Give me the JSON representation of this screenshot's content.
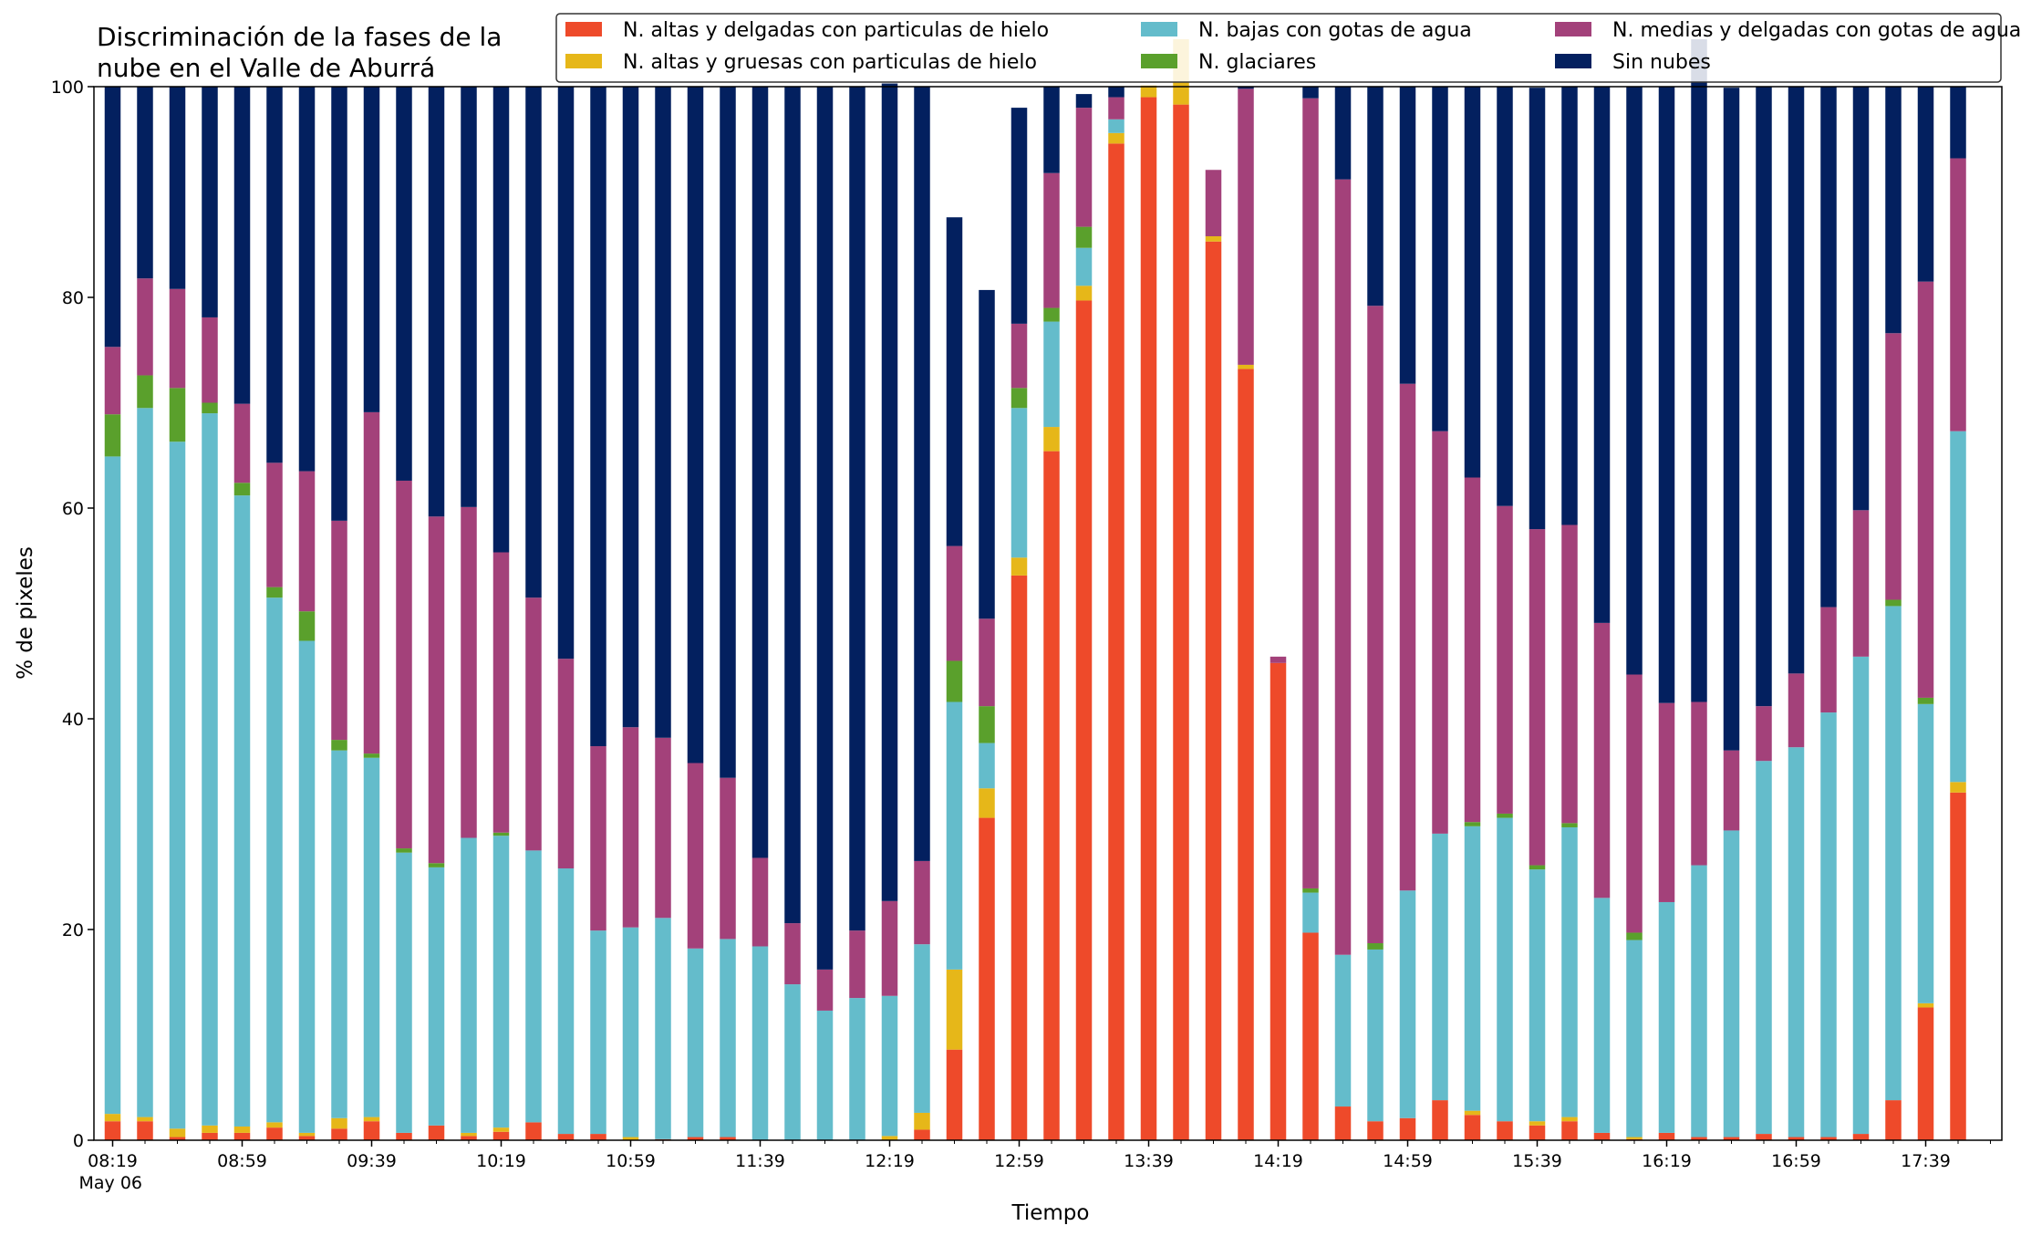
{
  "chart_data": {
    "type": "bar",
    "stacked": true,
    "title": "Discriminación de la fases de la\nnube en el Valle de Aburrá",
    "xlabel": "Tiempo",
    "ylabel": "% de pixeles",
    "ylim": [
      0,
      100
    ],
    "yticks": [
      0,
      20,
      40,
      60,
      80,
      100
    ],
    "grid": false,
    "legend_position": "top-right",
    "x_tick_labels": [
      {
        "label": "08:19",
        "sublabel": "May 06",
        "index": 0
      },
      {
        "label": "08:59",
        "index": 4
      },
      {
        "label": "09:39",
        "index": 8
      },
      {
        "label": "10:19",
        "index": 12
      },
      {
        "label": "10:59",
        "index": 16
      },
      {
        "label": "11:39",
        "index": 20
      },
      {
        "label": "12:19",
        "index": 24
      },
      {
        "label": "12:59",
        "index": 28
      },
      {
        "label": "13:39",
        "index": 32
      },
      {
        "label": "14:19",
        "index": 36
      },
      {
        "label": "14:59",
        "index": 40
      },
      {
        "label": "15:39",
        "index": 44
      },
      {
        "label": "16:19",
        "index": 48
      },
      {
        "label": "16:59",
        "index": 52
      },
      {
        "label": "17:39",
        "index": 56
      }
    ],
    "categories": [
      "08:19",
      "08:29",
      "08:39",
      "08:49",
      "08:59",
      "09:09",
      "09:19",
      "09:29",
      "09:39",
      "09:49",
      "09:59",
      "10:09",
      "10:19",
      "10:29",
      "10:39",
      "10:49",
      "10:59",
      "11:09",
      "11:19",
      "11:29",
      "11:39",
      "11:49",
      "11:59",
      "12:09",
      "12:19",
      "12:29",
      "12:39",
      "12:49",
      "12:59",
      "13:09",
      "13:19",
      "13:29",
      "13:39",
      "13:49",
      "13:59",
      "14:09",
      "14:19",
      "14:29",
      "14:39",
      "14:49",
      "14:59",
      "15:09",
      "15:19",
      "15:29",
      "15:39",
      "15:49",
      "15:59",
      "16:09",
      "16:19",
      "16:29",
      "16:39",
      "16:49",
      "16:59",
      "17:09",
      "17:19",
      "17:29",
      "17:39",
      "17:49"
    ],
    "series": [
      {
        "name": "N. altas y delgadas con particulas de hielo",
        "color": "#ee4a2a",
        "values": [
          1.8,
          1.8,
          0.3,
          0.7,
          0.7,
          1.2,
          0.4,
          1.1,
          1.8,
          0.7,
          1.4,
          0.4,
          0.8,
          1.7,
          0.6,
          0.6,
          0.0,
          0.1,
          0.3,
          0.3,
          0.0,
          0.0,
          0.0,
          0.0,
          0.0,
          1.0,
          8.6,
          30.6,
          53.6,
          65.4,
          79.7,
          94.6,
          99.0,
          98.3,
          85.3,
          73.2,
          45.3,
          19.7,
          3.2,
          1.8,
          2.1,
          3.8,
          2.4,
          1.8,
          1.4,
          1.8,
          0.7,
          0.1,
          0.7,
          0.3,
          0.3,
          0.6,
          0.3,
          0.3,
          0.6,
          3.8,
          12.6,
          33.0
        ]
      },
      {
        "name": "N. altas y gruesas con particulas de hielo",
        "color": "#e6b719",
        "values": [
          0.7,
          0.4,
          0.8,
          0.7,
          0.6,
          0.5,
          0.3,
          1.0,
          0.4,
          0.0,
          0.0,
          0.3,
          0.4,
          0.0,
          0.0,
          0.0,
          0.3,
          0.0,
          0.0,
          0.0,
          0.0,
          0.0,
          0.0,
          0.0,
          0.4,
          1.6,
          7.6,
          2.8,
          1.7,
          2.3,
          1.4,
          1.0,
          1.1,
          6.2,
          0.5,
          0.4,
          0.0,
          0.0,
          0.0,
          0.0,
          0.0,
          0.0,
          0.4,
          0.0,
          0.4,
          0.4,
          0.0,
          0.2,
          0.0,
          0.0,
          0.0,
          0.0,
          0.0,
          0.0,
          0.0,
          0.0,
          0.4,
          1.0
        ]
      },
      {
        "name": "N. bajas con gotas de agua",
        "color": "#64bccb",
        "values": [
          62.4,
          67.3,
          65.2,
          67.6,
          59.9,
          49.8,
          46.7,
          34.9,
          34.1,
          26.6,
          24.5,
          28.0,
          27.7,
          25.8,
          25.2,
          19.3,
          19.9,
          21.0,
          17.9,
          18.8,
          18.4,
          14.8,
          12.3,
          13.5,
          13.3,
          16.0,
          25.4,
          4.3,
          14.2,
          10.0,
          3.6,
          1.3,
          0.0,
          0.0,
          0.0,
          0.0,
          0.0,
          3.8,
          14.4,
          16.3,
          21.6,
          25.3,
          27.0,
          28.8,
          23.9,
          27.5,
          22.3,
          18.7,
          21.9,
          25.8,
          29.1,
          35.4,
          37.0,
          40.3,
          45.3,
          46.9,
          28.4,
          33.3
        ]
      },
      {
        "name": "N. glaciares",
        "color": "#5aa02c",
        "values": [
          4.0,
          3.1,
          5.1,
          1.0,
          1.2,
          1.0,
          2.8,
          1.0,
          0.4,
          0.4,
          0.4,
          0.0,
          0.3,
          0.0,
          0.0,
          0.0,
          0.0,
          0.0,
          0.0,
          0.0,
          0.0,
          0.0,
          0.0,
          0.0,
          0.0,
          0.0,
          3.9,
          3.5,
          1.9,
          1.3,
          2.0,
          0.0,
          0.0,
          0.0,
          0.0,
          0.0,
          0.0,
          0.4,
          0.0,
          0.6,
          0.0,
          0.0,
          0.4,
          0.4,
          0.4,
          0.4,
          0.0,
          0.7,
          0.0,
          0.0,
          0.0,
          0.0,
          0.0,
          0.0,
          0.0,
          0.6,
          0.6,
          0.0
        ]
      },
      {
        "name": "N. medias y delgadas con gotas de agua",
        "color": "#a3417a",
        "values": [
          6.4,
          9.2,
          9.4,
          8.1,
          7.5,
          11.8,
          13.3,
          20.8,
          32.4,
          34.9,
          32.9,
          31.4,
          26.6,
          24.0,
          19.9,
          17.5,
          19.0,
          17.1,
          17.6,
          15.3,
          8.4,
          5.8,
          3.9,
          6.4,
          9.0,
          7.9,
          10.9,
          8.3,
          6.1,
          12.8,
          11.3,
          2.1,
          0.0,
          0.0,
          6.3,
          26.2,
          0.6,
          75.0,
          73.6,
          60.5,
          48.1,
          38.2,
          32.7,
          29.2,
          31.9,
          28.3,
          26.1,
          24.5,
          18.9,
          15.5,
          7.6,
          5.2,
          7.0,
          10.0,
          13.9,
          25.3,
          39.5,
          25.9
        ]
      },
      {
        "name": "Sin nubes",
        "color": "#03205f",
        "values": [
          24.7,
          18.2,
          19.2,
          21.9,
          30.1,
          35.7,
          36.5,
          41.2,
          30.9,
          37.4,
          40.8,
          39.9,
          44.2,
          48.5,
          54.3,
          62.6,
          60.8,
          61.8,
          64.2,
          65.6,
          73.2,
          79.4,
          83.8,
          80.1,
          77.6,
          73.5,
          31.2,
          31.2,
          20.5,
          8.2,
          1.3,
          1.0,
          0.0,
          0.0,
          0.0,
          0.2,
          0.0,
          1.1,
          8.8,
          20.8,
          28.2,
          32.7,
          37.1,
          39.8,
          41.9,
          41.6,
          50.9,
          55.8,
          58.5,
          62.9,
          62.9,
          58.8,
          55.7,
          49.4,
          40.2,
          23.4,
          18.5,
          6.8
        ]
      }
    ]
  }
}
